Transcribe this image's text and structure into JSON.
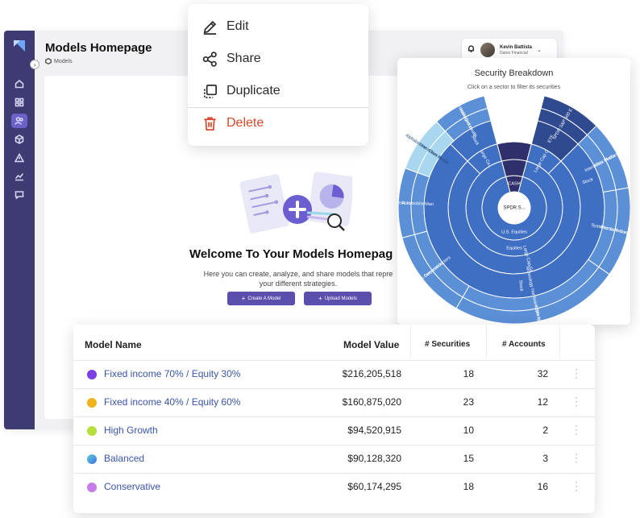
{
  "app": {
    "page_title": "Models Homepage",
    "breadcrumb": "Models",
    "user": {
      "name": "Kevin Battista",
      "org": "Daton Financial"
    },
    "welcome_title": "Welcome To Your Models Homepag",
    "welcome_sub_1": "Here you can create, analyze, and share models that repre",
    "welcome_sub_2": "your different strategies.",
    "create_button": "Create A Model",
    "upload_button": "Upload Models",
    "sidebar_icons": [
      "home-icon",
      "grid-icon",
      "users-icon",
      "cube-icon",
      "warning-icon",
      "chart-icon",
      "chat-icon"
    ]
  },
  "menu": {
    "items": [
      {
        "label": "Edit",
        "icon": "pencil-icon"
      },
      {
        "label": "Share",
        "icon": "share-icon"
      },
      {
        "label": "Duplicate",
        "icon": "duplicate-icon"
      },
      {
        "label": "Delete",
        "icon": "trash-icon"
      }
    ],
    "danger_color": "#d6482b"
  },
  "chart_data": {
    "type": "sunburst",
    "title": "Security Breakdown",
    "subtitle": "Click on a sector to filter its securities",
    "center": "SPDR S...",
    "rings": [
      {
        "level": 1,
        "labels": [
          "CASH",
          "U.S. Equities"
        ]
      },
      {
        "level": 2,
        "labels": [
          "Equities"
        ]
      },
      {
        "level": 3,
        "labels": [
          "Large Cap Growth",
          "Large Cap Core",
          "Large Ca..."
        ]
      },
      {
        "level": 4,
        "labels": [
          "Stock",
          "ETF",
          "Stock",
          "Stock"
        ]
      },
      {
        "level": 5,
        "labels": [
          "Technology Hardware Storage & Perip",
          "Semiconductors",
          "Automobile Man",
          "Interactive Media",
          "Managed Health",
          "SPDR S&P 500 E",
          "Interactive Media",
          "Systems Software"
        ]
      },
      {
        "level": 6,
        "labels": [
          "Apple Inc.",
          "NVIDIA Corporation",
          "Tesla Inc.",
          "Alphabet Inc. Class A",
          "UnitedHealth Group",
          "Meta Platforms Inc.",
          "Microsoft Corporation"
        ]
      }
    ],
    "colors": {
      "dark": "#2f4a8f",
      "mid": "#3f6fc2",
      "light": "#5b8fd6",
      "pale": "#a9d7ef",
      "cash": "#2e2f6b"
    }
  },
  "table": {
    "headers": [
      "Model Name",
      "Model Value",
      "# Securities",
      "# Accounts"
    ],
    "rows": [
      {
        "name": "Fixed income 70% / Equity 30%",
        "value": "$216,205,518",
        "securities": "18",
        "accounts": "32",
        "color": "#7b3fe4"
      },
      {
        "name": "Fixed income 40% / Equity 60%",
        "value": "$160,875,020",
        "securities": "23",
        "accounts": "12",
        "color": "#f0b21b"
      },
      {
        "name": "High Growth",
        "value": "$94,520,915",
        "securities": "10",
        "accounts": "2",
        "color": "#b5e03a"
      },
      {
        "name": "Balanced",
        "value": "$90,128,320",
        "securities": "15",
        "accounts": "3",
        "color": "#3f8fe0"
      },
      {
        "name": "Conservative",
        "value": "$60,174,295",
        "securities": "18",
        "accounts": "16",
        "color": "#c77be8"
      }
    ]
  }
}
